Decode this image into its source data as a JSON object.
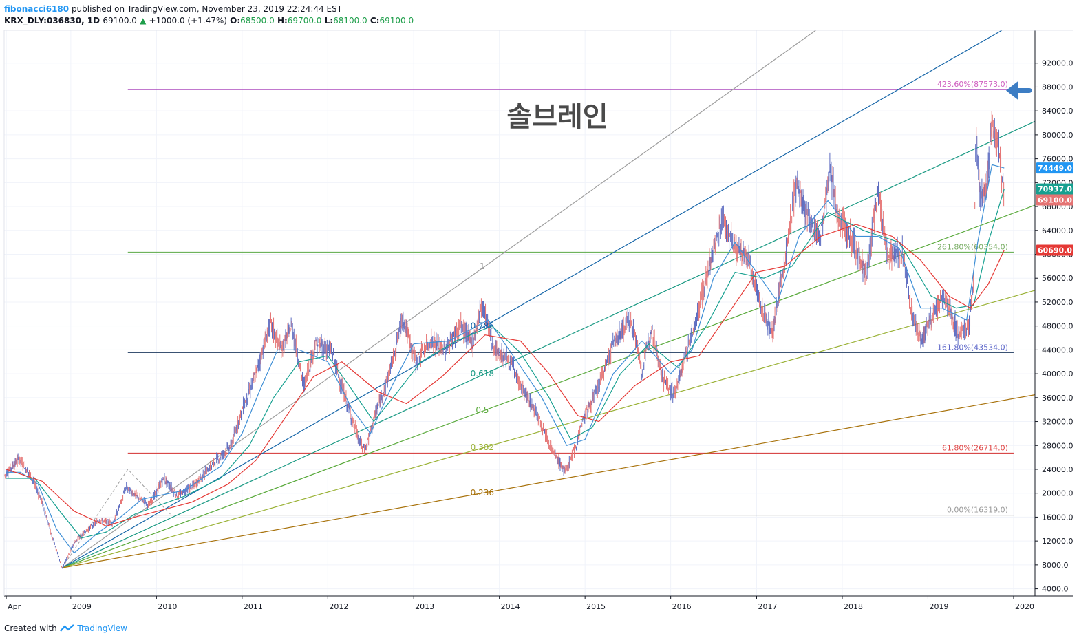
{
  "header": {
    "author": "fibonacci6180",
    "published_text": "published on TradingView.com, November 23, 2019 22:24:44 EST"
  },
  "ohlc": {
    "symbol": "KRX_DLY:036830, 1D",
    "last": "69100.0",
    "change": "+1000.0 (+1.47%)",
    "o_label": "O:",
    "o_value": "68500.0",
    "h_label": "H:",
    "h_value": "69700.0",
    "l_label": "L:",
    "l_value": "68100.0",
    "c_label": "C:",
    "c_value": "69100.0"
  },
  "footer": {
    "created_with": "Created with",
    "brand": "TradingView"
  },
  "colors": {
    "grid": "#f0f3fa",
    "axis": "#131722",
    "up_candle": "#e57373",
    "down_candle": "#5c6bc0",
    "fast_ma": "#3f8fd6",
    "mid_ma": "#17a090",
    "slow_ma": "#e53935",
    "fan_1": "#9e9e9e",
    "fan_0786": "#1565a8",
    "fan_0618": "#1b9a84",
    "fan_05": "#5aaa3c",
    "fan_0382": "#9ab236",
    "fan_0236": "#a8720c",
    "arrow": "#3d7dc4"
  },
  "chart_data": {
    "type": "candlestick",
    "title": "솔브레인",
    "y_axis": {
      "ticks": [
        4000,
        8000,
        12000,
        16000,
        20000,
        24000,
        28000,
        32000,
        36000,
        40000,
        44000,
        48000,
        52000,
        56000,
        60000,
        64000,
        68000,
        72000,
        76000,
        80000,
        84000,
        88000,
        92000
      ],
      "tick_labels": [
        "4000.0",
        "8000.0",
        "12000.0",
        "16000.0",
        "20000.0",
        "24000.0",
        "28000.0",
        "32000.0",
        "36000.0",
        "40000.0",
        "44000.0",
        "48000.0",
        "52000.0",
        "56000.0",
        "60000.0",
        "64000.0",
        "68000.0",
        "72000.0",
        "76000.0",
        "80000.0",
        "84000.0",
        "88000.0",
        "92000.0"
      ],
      "range": [
        2800,
        97500
      ],
      "price_badges": [
        {
          "value": 74449,
          "label": "74449.0",
          "color": "#2196f3"
        },
        {
          "value": 70937,
          "label": "70937.0",
          "color": "#17a090"
        },
        {
          "value": 69100,
          "label": "69100.0",
          "color": "#e57373"
        },
        {
          "value": 60690,
          "label": "60690.0",
          "color": "#e53935"
        }
      ]
    },
    "x_axis": {
      "range": [
        "2008-03-23",
        "2020-04-01"
      ],
      "tick_dates": [
        "2008-04-01",
        "2009-01-01",
        "2010-01-01",
        "2011-01-01",
        "2012-01-01",
        "2013-01-01",
        "2014-01-01",
        "2015-01-01",
        "2016-01-01",
        "2017-01-01",
        "2018-01-01",
        "2019-01-01",
        "2020-01-01"
      ],
      "tick_labels": [
        "Apr",
        "2009",
        "2010",
        "2011",
        "2012",
        "2013",
        "2014",
        "2015",
        "2016",
        "2017",
        "2018",
        "2019",
        "2020"
      ]
    },
    "price_path": [
      [
        "2008-03-25",
        23000
      ],
      [
        "2008-05-25",
        25800
      ],
      [
        "2008-07-15",
        23000
      ],
      [
        "2008-09-01",
        18500
      ],
      [
        "2008-10-15",
        12500
      ],
      [
        "2008-11-25",
        7500
      ],
      [
        "2009-01-20",
        12000
      ],
      [
        "2009-03-01",
        13500
      ],
      [
        "2009-05-01",
        15500
      ],
      [
        "2009-07-01",
        15000
      ],
      [
        "2009-08-25",
        21000
      ],
      [
        "2009-10-10",
        19500
      ],
      [
        "2009-12-01",
        18000
      ],
      [
        "2010-02-01",
        22500
      ],
      [
        "2010-04-01",
        19500
      ],
      [
        "2010-06-15",
        21500
      ],
      [
        "2010-09-01",
        25000
      ],
      [
        "2010-11-15",
        28000
      ],
      [
        "2011-01-01",
        34000
      ],
      [
        "2011-03-01",
        40000
      ],
      [
        "2011-05-01",
        48500
      ],
      [
        "2011-06-15",
        44000
      ],
      [
        "2011-08-01",
        48000
      ],
      [
        "2011-09-20",
        38000
      ],
      [
        "2011-11-10",
        45000
      ],
      [
        "2012-01-15",
        44000
      ],
      [
        "2012-03-15",
        36000
      ],
      [
        "2012-05-20",
        28000
      ],
      [
        "2012-06-10",
        27500
      ],
      [
        "2012-07-20",
        33000
      ],
      [
        "2012-09-15",
        39500
      ],
      [
        "2012-11-15",
        49500
      ],
      [
        "2013-01-10",
        42000
      ],
      [
        "2013-03-15",
        45500
      ],
      [
        "2013-05-15",
        44000
      ],
      [
        "2013-07-20",
        48000
      ],
      [
        "2013-09-10",
        45000
      ],
      [
        "2013-10-20",
        52000
      ],
      [
        "2013-12-10",
        44000
      ],
      [
        "2014-02-15",
        42000
      ],
      [
        "2014-04-15",
        37000
      ],
      [
        "2014-06-15",
        33000
      ],
      [
        "2014-08-15",
        27000
      ],
      [
        "2014-10-10",
        23500
      ],
      [
        "2014-11-15",
        27000
      ],
      [
        "2014-12-20",
        32000
      ],
      [
        "2015-03-01",
        38000
      ],
      [
        "2015-05-01",
        45000
      ],
      [
        "2015-07-15",
        49500
      ],
      [
        "2015-09-01",
        40000
      ],
      [
        "2015-10-10",
        48000
      ],
      [
        "2015-12-01",
        39000
      ],
      [
        "2016-01-15",
        36500
      ],
      [
        "2016-03-01",
        42500
      ],
      [
        "2016-05-01",
        51000
      ],
      [
        "2016-06-20",
        59000
      ],
      [
        "2016-08-10",
        66000
      ],
      [
        "2016-10-01",
        61000
      ],
      [
        "2016-12-01",
        59000
      ],
      [
        "2017-01-20",
        51000
      ],
      [
        "2017-03-10",
        47000
      ],
      [
        "2017-05-01",
        59000
      ],
      [
        "2017-06-20",
        72000
      ],
      [
        "2017-08-15",
        65000
      ],
      [
        "2017-10-01",
        63000
      ],
      [
        "2017-11-10",
        74500
      ],
      [
        "2017-12-15",
        66000
      ],
      [
        "2018-02-20",
        62000
      ],
      [
        "2018-04-15",
        56500
      ],
      [
        "2018-06-01",
        70500
      ],
      [
        "2018-07-15",
        60000
      ],
      [
        "2018-09-15",
        60500
      ],
      [
        "2018-10-25",
        50000
      ],
      [
        "2018-12-01",
        45500
      ],
      [
        "2019-01-20",
        50000
      ],
      [
        "2019-03-15",
        52500
      ],
      [
        "2019-05-15",
        46500
      ],
      [
        "2019-06-25",
        48000
      ],
      [
        "2019-07-15",
        56000
      ],
      [
        "2019-07-25",
        80000
      ],
      [
        "2019-08-10",
        70000
      ],
      [
        "2019-09-10",
        71000
      ],
      [
        "2019-10-01",
        83000
      ],
      [
        "2019-10-15",
        80000
      ],
      [
        "2019-11-01",
        77500
      ],
      [
        "2019-11-22",
        69100
      ]
    ],
    "moving_averages": [
      {
        "role": "fast",
        "color_key": "fast_ma",
        "points": [
          [
            "2008-04-01",
            23500
          ],
          [
            "2008-06-01",
            23500
          ],
          [
            "2008-08-15",
            21500
          ],
          [
            "2008-11-01",
            14000
          ],
          [
            "2009-01-15",
            10000
          ],
          [
            "2009-05-01",
            13500
          ],
          [
            "2009-08-01",
            16000
          ],
          [
            "2009-11-01",
            19000
          ],
          [
            "2010-05-01",
            20500
          ],
          [
            "2010-10-01",
            24500
          ],
          [
            "2011-01-01",
            30000
          ],
          [
            "2011-03-15",
            37000
          ],
          [
            "2011-06-01",
            44000
          ],
          [
            "2011-09-01",
            44000
          ],
          [
            "2012-01-01",
            42000
          ],
          [
            "2012-04-15",
            34000
          ],
          [
            "2012-07-01",
            30000
          ],
          [
            "2012-10-01",
            38000
          ],
          [
            "2013-01-01",
            45000
          ],
          [
            "2013-06-01",
            45500
          ],
          [
            "2013-11-15",
            49000
          ],
          [
            "2014-03-01",
            43000
          ],
          [
            "2014-07-01",
            36000
          ],
          [
            "2014-10-15",
            28000
          ],
          [
            "2015-01-01",
            29000
          ],
          [
            "2015-05-01",
            40000
          ],
          [
            "2015-09-01",
            45500
          ],
          [
            "2016-01-01",
            40000
          ],
          [
            "2016-04-01",
            44000
          ],
          [
            "2016-07-01",
            56000
          ],
          [
            "2016-10-01",
            62000
          ],
          [
            "2017-01-01",
            57000
          ],
          [
            "2017-04-01",
            52000
          ],
          [
            "2017-07-01",
            63000
          ],
          [
            "2017-11-01",
            69000
          ],
          [
            "2018-03-01",
            63000
          ],
          [
            "2018-06-01",
            63000
          ],
          [
            "2018-09-01",
            61000
          ],
          [
            "2018-12-01",
            51000
          ],
          [
            "2019-03-01",
            51000
          ],
          [
            "2019-06-15",
            49000
          ],
          [
            "2019-08-01",
            62000
          ],
          [
            "2019-10-01",
            75000
          ],
          [
            "2019-11-22",
            74449
          ]
        ]
      },
      {
        "role": "mid",
        "color_key": "mid_ma",
        "points": [
          [
            "2008-04-01",
            22500
          ],
          [
            "2008-08-01",
            22500
          ],
          [
            "2008-11-15",
            17000
          ],
          [
            "2009-02-15",
            12500
          ],
          [
            "2009-06-01",
            13500
          ],
          [
            "2009-10-01",
            16500
          ],
          [
            "2010-05-01",
            19500
          ],
          [
            "2010-10-01",
            22500
          ],
          [
            "2011-02-01",
            28000
          ],
          [
            "2011-05-15",
            36000
          ],
          [
            "2011-09-01",
            42000
          ],
          [
            "2012-01-01",
            43000
          ],
          [
            "2012-04-01",
            38000
          ],
          [
            "2012-07-15",
            32000
          ],
          [
            "2012-10-15",
            36500
          ],
          [
            "2013-02-01",
            42000
          ],
          [
            "2013-07-01",
            45500
          ],
          [
            "2013-12-01",
            48000
          ],
          [
            "2014-04-01",
            43500
          ],
          [
            "2014-08-01",
            36000
          ],
          [
            "2014-11-01",
            29000
          ],
          [
            "2015-02-01",
            31000
          ],
          [
            "2015-06-01",
            40000
          ],
          [
            "2015-10-01",
            45000
          ],
          [
            "2016-02-01",
            41000
          ],
          [
            "2016-06-01",
            48000
          ],
          [
            "2016-10-01",
            57000
          ],
          [
            "2017-02-01",
            56000
          ],
          [
            "2017-06-01",
            58000
          ],
          [
            "2017-11-01",
            67000
          ],
          [
            "2018-04-01",
            64000
          ],
          [
            "2018-09-01",
            62000
          ],
          [
            "2019-01-15",
            53000
          ],
          [
            "2019-05-01",
            51000
          ],
          [
            "2019-07-15",
            51500
          ],
          [
            "2019-09-15",
            62000
          ],
          [
            "2019-11-22",
            70937
          ]
        ]
      },
      {
        "role": "slow",
        "color_key": "slow_ma",
        "points": [
          [
            "2008-04-01",
            24000
          ],
          [
            "2008-09-01",
            22000
          ],
          [
            "2009-01-15",
            17000
          ],
          [
            "2009-06-01",
            14500
          ],
          [
            "2009-10-01",
            16000
          ],
          [
            "2010-06-01",
            18500
          ],
          [
            "2010-11-01",
            21500
          ],
          [
            "2011-03-01",
            25500
          ],
          [
            "2011-07-01",
            32500
          ],
          [
            "2011-11-01",
            39500
          ],
          [
            "2012-03-01",
            42000
          ],
          [
            "2012-08-01",
            37000
          ],
          [
            "2012-12-01",
            35000
          ],
          [
            "2013-05-01",
            39500
          ],
          [
            "2013-11-01",
            46500
          ],
          [
            "2014-04-01",
            45500
          ],
          [
            "2014-08-01",
            40000
          ],
          [
            "2014-12-01",
            33000
          ],
          [
            "2015-03-01",
            32000
          ],
          [
            "2015-08-01",
            38000
          ],
          [
            "2016-01-01",
            42000
          ],
          [
            "2016-05-01",
            43000
          ],
          [
            "2016-09-01",
            50000
          ],
          [
            "2017-01-01",
            57000
          ],
          [
            "2017-05-01",
            58000
          ],
          [
            "2017-10-01",
            63000
          ],
          [
            "2018-03-01",
            65000
          ],
          [
            "2018-08-01",
            63000
          ],
          [
            "2018-12-01",
            59000
          ],
          [
            "2019-04-01",
            53000
          ],
          [
            "2019-07-01",
            51000
          ],
          [
            "2019-09-15",
            55000
          ],
          [
            "2019-11-22",
            60690
          ]
        ]
      }
    ],
    "fib_retracement": {
      "levels": [
        {
          "label": "423.60%(87573.0)",
          "value": 87573,
          "color": "#9c27b0",
          "text_color": "#d060c0"
        },
        {
          "label": "261.80%(60354.0)",
          "value": 60354,
          "color": "#5aa845",
          "text_color": "#7aae66"
        },
        {
          "label": "161.80%(43534.0)",
          "value": 43534,
          "color": "#1e3a5f",
          "text_color": "#5a64c8"
        },
        {
          "label": "61.80%(26714.0)",
          "value": 26714,
          "color": "#d32f2f",
          "text_color": "#e04848"
        },
        {
          "label": "0.00%(16319.0)",
          "value": 16319,
          "color": "#888888",
          "text_color": "#9a9a9a"
        }
      ],
      "start_date": "2009-09-01",
      "end_date": "2020-01-01"
    },
    "fib_fan": {
      "origin": [
        "2008-11-25",
        7500
      ],
      "lines": [
        {
          "ratio_label": "1",
          "color_key": "fan_1",
          "end": [
            "2013-11-01",
            58000
          ],
          "label_price": 58000
        },
        {
          "ratio_label": "0.786",
          "color_key": "fan_0786",
          "end": [
            "2013-11-01",
            48000
          ],
          "label_price": 48000
        },
        {
          "ratio_label": "0.618",
          "color_key": "fan_0618",
          "end": [
            "2013-11-01",
            40000
          ],
          "label_price": 40000
        },
        {
          "ratio_label": "0.5",
          "color_key": "fan_05",
          "end": [
            "2013-11-01",
            33900
          ],
          "label_price": 33900
        },
        {
          "ratio_label": "0.382",
          "color_key": "fan_0382",
          "end": [
            "2013-11-01",
            27700
          ],
          "label_price": 27700
        },
        {
          "ratio_label": "0.236",
          "color_key": "fan_0236",
          "end": [
            "2013-11-01",
            20100
          ],
          "label_price": 20100
        }
      ],
      "guide_path": [
        [
          "2008-11-25",
          7500
        ],
        [
          "2009-09-01",
          24000
        ],
        [
          "2010-03-01",
          16500
        ]
      ]
    },
    "annotation_arrow_price": 88000
  }
}
